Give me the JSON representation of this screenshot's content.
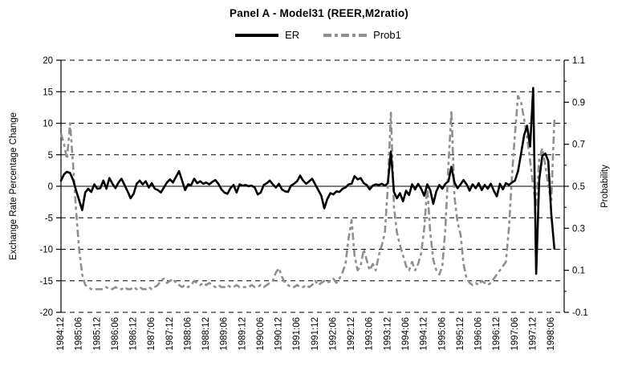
{
  "title": "Panel A - Model31 (REER,M2ratio)",
  "legend": [
    {
      "label": "ER",
      "color": "#000000",
      "style": "solid"
    },
    {
      "label": "Prob1",
      "color": "#8f8f8f",
      "style": "dashed"
    }
  ],
  "axes": {
    "y_left": {
      "title": "Exchange Rate Percentage Change",
      "tick_labels": [
        "20",
        "15",
        "10",
        "5",
        "0",
        "-5",
        "-10",
        "-15",
        "-20"
      ],
      "range": [
        -20,
        20
      ]
    },
    "y_right": {
      "title": "Probability",
      "tick_labels": [
        "1.1",
        "0.9",
        "0.7",
        "0.5",
        "0.3",
        "0.1",
        "-0.1"
      ],
      "range": [
        -0.1,
        1.1
      ]
    },
    "x": {
      "tick_labels": [
        "1984:12",
        "1985:06",
        "1985:12",
        "1986:06",
        "1986:12",
        "1987:06",
        "1987:12",
        "1988:06",
        "1988:12",
        "1989:06",
        "1989:12",
        "1990:06",
        "1990:12",
        "1991:06",
        "1991:12",
        "1992:06",
        "1992:12",
        "1993:06",
        "1993:12",
        "1994:06",
        "1994:12",
        "1995:06",
        "1995:12",
        "1996:06",
        "1996:12",
        "1997:06",
        "1997:12",
        "1998:06"
      ]
    }
  },
  "chart_data": {
    "type": "line",
    "title": "Panel A - Model31 (REER,M2ratio)",
    "x_start": "1984:12",
    "x_frequency": "monthly",
    "months_per_tick": 6,
    "x_tick_labels": [
      "1984:12",
      "1985:06",
      "1985:12",
      "1986:06",
      "1986:12",
      "1987:06",
      "1987:12",
      "1988:06",
      "1988:12",
      "1989:06",
      "1989:12",
      "1990:06",
      "1990:12",
      "1991:06",
      "1991:12",
      "1992:06",
      "1992:12",
      "1993:06",
      "1993:12",
      "1994:06",
      "1994:12",
      "1995:06",
      "1995:12",
      "1996:06",
      "1996:12",
      "1997:06",
      "1997:12",
      "1998:06"
    ],
    "y_left_label": "Exchange Rate Percentage Change",
    "y_right_label": "Probability",
    "y_left_range": [
      -20,
      20
    ],
    "y_right_range": [
      -0.1,
      1.1
    ],
    "grid": "horizontal-dashed",
    "legend_position": "top-center",
    "series": [
      {
        "name": "ER",
        "axis": "left",
        "color": "#000000",
        "line_style": "solid",
        "line_width": 2.6,
        "values": [
          0.9,
          1.9,
          2.3,
          2.1,
          1.0,
          -0.7,
          -2.2,
          -3.8,
          -1.0,
          -0.4,
          -0.9,
          0.3,
          -0.4,
          -0.3,
          0.9,
          -0.4,
          1.3,
          0.4,
          -0.3,
          0.6,
          1.2,
          0.2,
          -0.8,
          -1.9,
          -1.2,
          0.4,
          0.9,
          0.3,
          0.8,
          -0.2,
          0.5,
          -0.4,
          -0.6,
          -1.0,
          -0.2,
          0.6,
          1.1,
          0.6,
          1.5,
          2.4,
          0.9,
          -0.6,
          0.3,
          0.2,
          1.2,
          0.5,
          0.8,
          0.4,
          0.6,
          0.3,
          0.7,
          1.0,
          0.4,
          -0.5,
          -1.0,
          -1.2,
          -0.3,
          0.2,
          -1.0,
          0.3,
          0.1,
          0.2,
          0.0,
          0.1,
          -0.2,
          -1.3,
          -1.0,
          0.2,
          0.5,
          0.9,
          0.3,
          -0.2,
          0.4,
          -0.5,
          -0.8,
          -0.9,
          0.1,
          0.4,
          0.8,
          1.7,
          0.9,
          0.4,
          0.8,
          1.2,
          0.3,
          -0.6,
          -1.5,
          -3.5,
          -2.0,
          -1.1,
          -1.3,
          -0.8,
          -0.9,
          -0.4,
          -0.2,
          0.3,
          0.4,
          1.6,
          1.1,
          1.3,
          0.5,
          0.2,
          -0.5,
          0.1,
          0.3,
          0.2,
          0.4,
          0.1,
          0.5,
          5.5,
          -0.9,
          -1.9,
          -1.1,
          -2.4,
          -0.7,
          -1.4,
          0.3,
          -0.5,
          0.4,
          -0.4,
          -1.5,
          0.3,
          -0.6,
          -2.8,
          -0.8,
          0.2,
          -0.4,
          0.4,
          0.8,
          3.1,
          0.6,
          -0.3,
          0.3,
          1.0,
          0.3,
          -0.7,
          0.3,
          -0.3,
          0.5,
          -0.6,
          0.2,
          -0.4,
          0.4,
          -0.7,
          -1.6,
          0.4,
          -0.5,
          0.5,
          0.2,
          0.6,
          0.9,
          2.4,
          5.2,
          8.1,
          9.6,
          6.3,
          15.6,
          -13.9,
          1.0,
          4.8,
          5.2,
          4.0,
          -4.5,
          -9.9
        ]
      },
      {
        "name": "Prob1",
        "axis": "right",
        "color": "#8f8f8f",
        "line_style": "dashed",
        "line_width": 2.6,
        "values": [
          0.75,
          0.7,
          0.63,
          0.8,
          0.6,
          0.38,
          0.2,
          0.08,
          0.03,
          0.02,
          0.01,
          0.01,
          0.01,
          0.01,
          0.01,
          0.02,
          0.01,
          0.01,
          0.02,
          0.01,
          0.01,
          0.02,
          0.01,
          0.01,
          0.02,
          0.01,
          0.02,
          0.01,
          0.01,
          0.02,
          0.01,
          0.02,
          0.03,
          0.05,
          0.06,
          0.04,
          0.05,
          0.06,
          0.04,
          0.03,
          0.02,
          0.03,
          0.02,
          0.03,
          0.05,
          0.04,
          0.03,
          0.04,
          0.03,
          0.04,
          0.03,
          0.02,
          0.03,
          0.02,
          0.02,
          0.03,
          0.02,
          0.02,
          0.03,
          0.02,
          0.02,
          0.02,
          0.02,
          0.03,
          0.02,
          0.02,
          0.03,
          0.02,
          0.03,
          0.04,
          0.05,
          0.09,
          0.11,
          0.07,
          0.04,
          0.03,
          0.02,
          0.02,
          0.03,
          0.02,
          0.02,
          0.03,
          0.02,
          0.03,
          0.05,
          0.03,
          0.04,
          0.05,
          0.04,
          0.05,
          0.06,
          0.04,
          0.06,
          0.09,
          0.13,
          0.25,
          0.34,
          0.17,
          0.1,
          0.12,
          0.2,
          0.15,
          0.1,
          0.13,
          0.1,
          0.17,
          0.22,
          0.28,
          0.5,
          0.85,
          0.4,
          0.28,
          0.22,
          0.17,
          0.12,
          0.1,
          0.14,
          0.1,
          0.13,
          0.18,
          0.3,
          0.5,
          0.28,
          0.15,
          0.1,
          0.08,
          0.12,
          0.3,
          0.6,
          0.86,
          0.45,
          0.33,
          0.27,
          0.13,
          0.06,
          0.04,
          0.03,
          0.04,
          0.03,
          0.05,
          0.04,
          0.03,
          0.04,
          0.06,
          0.08,
          0.1,
          0.12,
          0.14,
          0.3,
          0.55,
          0.75,
          0.93,
          0.9,
          0.82,
          0.73,
          0.62,
          0.5,
          0.4,
          0.63,
          0.68,
          0.6,
          0.5,
          0.43,
          0.82
        ]
      }
    ]
  }
}
